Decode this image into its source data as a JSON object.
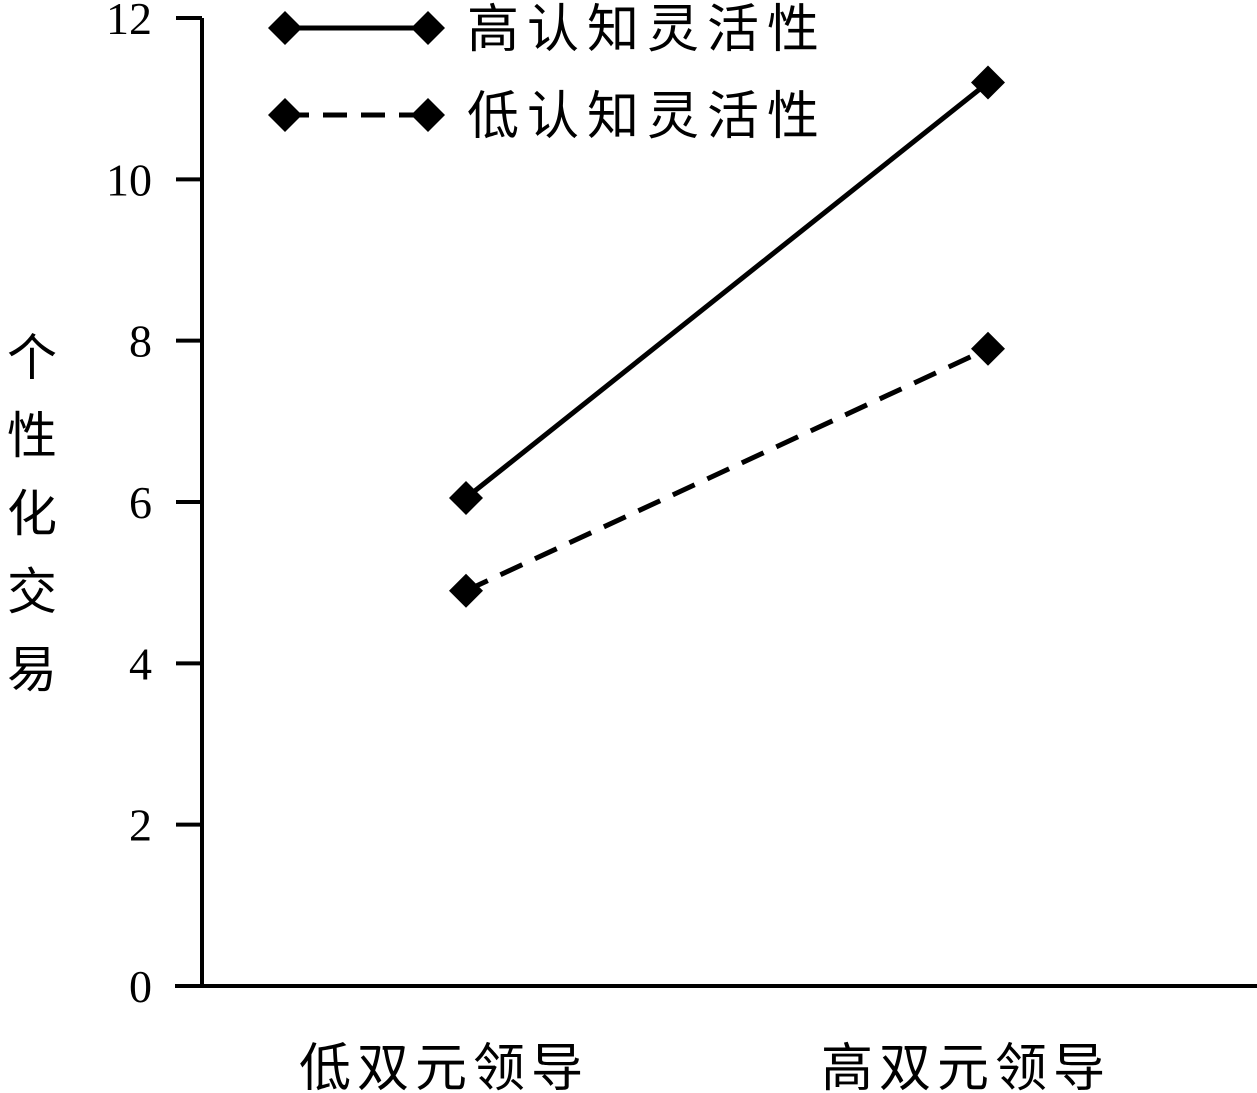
{
  "chart_data": {
    "type": "line",
    "categories": [
      "低双元领导",
      "高双元领导"
    ],
    "series": [
      {
        "name": "高认知灵活性",
        "values": [
          6.05,
          11.2
        ],
        "dashed": false
      },
      {
        "name": "低认知灵活性",
        "values": [
          4.9,
          7.9
        ],
        "dashed": true
      }
    ],
    "ylabel": "个性化交易",
    "ylabel_chars": [
      "个",
      "性",
      "化",
      "交",
      "易"
    ],
    "ylim": [
      0,
      12
    ],
    "yticks": [
      "0",
      "2",
      "4",
      "6",
      "8",
      "10",
      "12"
    ],
    "legend_position": "top-left",
    "colors": {
      "line": "#000000",
      "marker": "#000000"
    }
  }
}
